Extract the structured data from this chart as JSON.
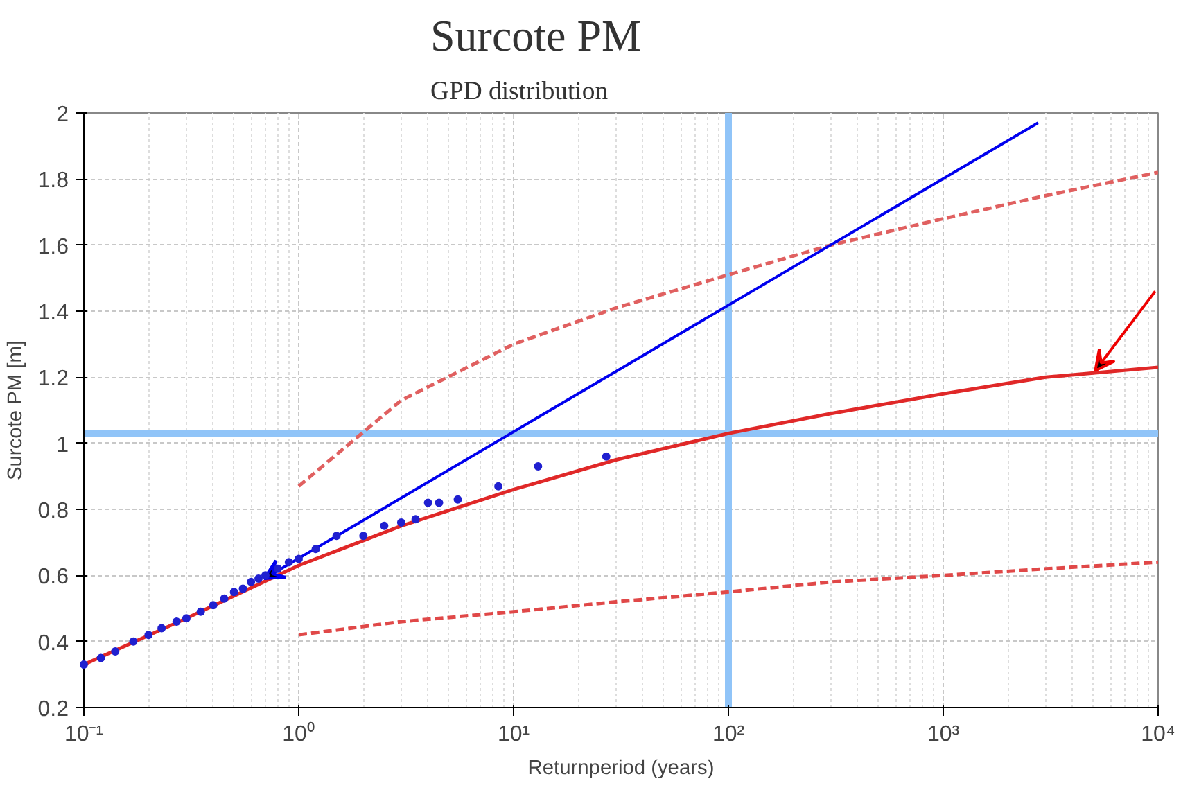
{
  "chart_data": {
    "type": "line",
    "title": "Surcote PM",
    "subtitle": "GPD distribution",
    "xlabel": "Returnperiod (years)",
    "ylabel": "Surcote PM [m]",
    "log": "x",
    "grid": true,
    "xlim": [
      0.1,
      10000
    ],
    "ylim": [
      0.2,
      2
    ],
    "xticks": [
      {
        "value": 0.1,
        "label": "10⁻¹"
      },
      {
        "value": 1,
        "label": "10⁰"
      },
      {
        "value": 10,
        "label": "10¹"
      },
      {
        "value": 100,
        "label": "10²"
      },
      {
        "value": 1000,
        "label": "10³"
      },
      {
        "value": 10000,
        "label": "10⁴"
      }
    ],
    "yticks": [
      0.2,
      0.4,
      0.6,
      0.8,
      1,
      1.2,
      1.4,
      1.6,
      1.8,
      2
    ],
    "series": [
      {
        "type": "scatter",
        "marker": "circle",
        "color": "#2020d0",
        "x": [
          0.1,
          0.12,
          0.14,
          0.17,
          0.2,
          0.23,
          0.27,
          0.3,
          0.35,
          0.4,
          0.45,
          0.5,
          0.55,
          0.6,
          0.65,
          0.7,
          0.8,
          0.9,
          1.0,
          1.2,
          1.5,
          2,
          2.5,
          3,
          3.5,
          4,
          4.5,
          5.5,
          8.5,
          13,
          27
        ],
        "values": [
          0.33,
          0.35,
          0.37,
          0.4,
          0.42,
          0.44,
          0.46,
          0.47,
          0.49,
          0.51,
          0.53,
          0.55,
          0.56,
          0.58,
          0.59,
          0.6,
          0.62,
          0.64,
          0.65,
          0.68,
          0.72,
          0.72,
          0.75,
          0.76,
          0.77,
          0.82,
          0.82,
          0.83,
          0.87,
          0.93,
          0.96
        ]
      },
      {
        "line_style": "solid",
        "color": "#e02828",
        "x": [
          0.1,
          0.3,
          1,
          3,
          10,
          30,
          100,
          300,
          1000,
          3000,
          10000
        ],
        "values": [
          0.33,
          0.47,
          0.63,
          0.75,
          0.86,
          0.95,
          1.03,
          1.09,
          1.15,
          1.2,
          1.23
        ]
      },
      {
        "line_style": "dashed",
        "color": "#e06060",
        "x": [
          1,
          3,
          10,
          30,
          100,
          300,
          1000,
          3000,
          10000
        ],
        "values": [
          0.87,
          1.13,
          1.3,
          1.41,
          1.51,
          1.6,
          1.68,
          1.75,
          1.82
        ]
      },
      {
        "line_style": "dashed",
        "color": "#e04848",
        "x": [
          1,
          3,
          10,
          30,
          100,
          300,
          1000,
          3000,
          10000
        ],
        "values": [
          0.42,
          0.46,
          0.49,
          0.52,
          0.55,
          0.58,
          0.6,
          0.62,
          0.64
        ]
      }
    ],
    "ref_lines": [
      {
        "axis": "y",
        "value": 1.03,
        "color": "#90c4f8"
      },
      {
        "axis": "x",
        "value": 100,
        "color": "#90c4f8"
      }
    ]
  }
}
